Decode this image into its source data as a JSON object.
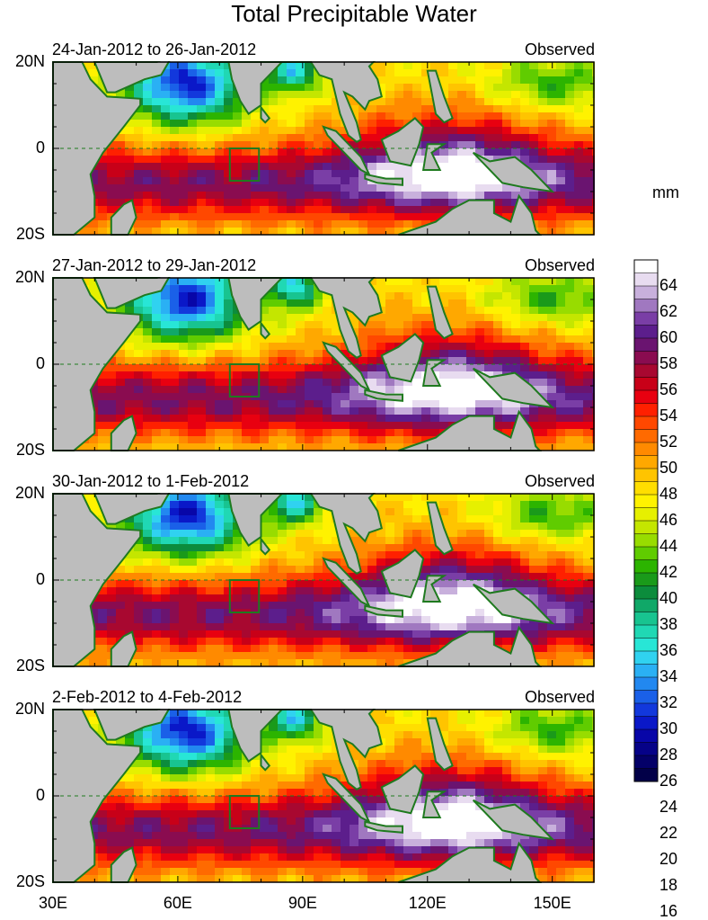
{
  "title": "Total Precipitable Water",
  "units": "mm",
  "panels": [
    {
      "date": "24-Jan-2012 to 26-Jan-2012",
      "label": "Observed"
    },
    {
      "date": "27-Jan-2012 to 29-Jan-2012",
      "label": "Observed"
    },
    {
      "date": "30-Jan-2012 to 1-Feb-2012",
      "label": "Observed"
    },
    {
      "date": "2-Feb-2012 to 4-Feb-2012",
      "label": "Observed"
    }
  ],
  "lat_labels": [
    "20N",
    "0",
    "20S"
  ],
  "lon_labels": [
    "30E",
    "60E",
    "90E",
    "120E",
    "150E"
  ],
  "colorbar": {
    "labels": [
      "64",
      "62",
      "60",
      "58",
      "56",
      "54",
      "52",
      "50",
      "48",
      "46",
      "44",
      "42",
      "40",
      "38",
      "36",
      "34",
      "32",
      "30",
      "28",
      "26",
      "24",
      "22",
      "20",
      "18",
      "16"
    ],
    "colors": [
      "#ffffff",
      "#e8dcf0",
      "#c8b0dc",
      "#a078c0",
      "#7a3ea6",
      "#5c1e8c",
      "#6a1470",
      "#8a0c50",
      "#a80830",
      "#c80018",
      "#e80010",
      "#ff2000",
      "#ff4800",
      "#ff6a00",
      "#ff8a00",
      "#ffa800",
      "#ffc400",
      "#ffde00",
      "#fff200",
      "#e6f000",
      "#c4e600",
      "#98dc00",
      "#60cc00",
      "#2cb400",
      "#1a9a1a",
      "#0c8c3c",
      "#10a868",
      "#18c490",
      "#20d8b4",
      "#28e6d6",
      "#30d2f0",
      "#2ab0f4",
      "#2288f0",
      "#1a60e8",
      "#1238dc",
      "#0a18c8",
      "#0806a8",
      "#060288",
      "#040068",
      "#020048"
    ]
  },
  "map": {
    "lon_range": [
      30,
      160
    ],
    "lat_range": [
      -20,
      20
    ],
    "colors": {
      "land": "#bdbdbd",
      "coast": "#1f7a1f",
      "box": "#1f7a1f"
    }
  }
}
